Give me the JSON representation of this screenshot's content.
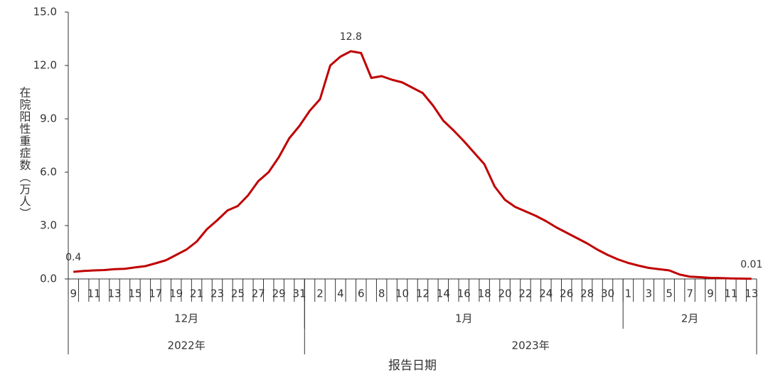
{
  "chart_data": {
    "type": "line",
    "y_label": "在院阳性重症数（万人）",
    "x_label": "报告日期",
    "categories": [
      "9",
      null,
      "11",
      null,
      "13",
      null,
      "15",
      null,
      "17",
      null,
      "19",
      null,
      "21",
      null,
      "23",
      null,
      "25",
      null,
      "27",
      null,
      "29",
      null,
      "31",
      null,
      "2",
      null,
      "4",
      null,
      "6",
      null,
      "8",
      null,
      "10",
      null,
      "12",
      null,
      "14",
      null,
      "16",
      null,
      "18",
      null,
      "20",
      null,
      "22",
      null,
      "24",
      null,
      "26",
      null,
      "28",
      null,
      "30",
      null,
      "1",
      null,
      "3",
      null,
      "5",
      null,
      "7",
      null,
      "9",
      null,
      "11",
      null,
      "13"
    ],
    "months": [
      "12月",
      "1月",
      "2月"
    ],
    "years": [
      "2022年",
      "2023年"
    ],
    "series": [
      {
        "name": "在院阳性重症数",
        "color": "#c00000",
        "values": [
          0.4,
          0.45,
          0.48,
          0.5,
          0.55,
          0.57,
          0.65,
          0.72,
          0.88,
          1.05,
          1.35,
          1.65,
          2.1,
          2.8,
          3.3,
          3.85,
          4.1,
          4.7,
          5.5,
          6.0,
          6.85,
          7.9,
          8.6,
          9.45,
          10.1,
          12.0,
          12.5,
          12.8,
          12.7,
          11.3,
          11.4,
          11.2,
          11.05,
          10.75,
          10.45,
          9.75,
          8.9,
          8.35,
          7.75,
          7.1,
          6.45,
          5.2,
          4.45,
          4.05,
          3.8,
          3.55,
          3.25,
          2.9,
          2.6,
          2.3,
          2.0,
          1.65,
          1.35,
          1.1,
          0.9,
          0.75,
          0.62,
          0.55,
          0.48,
          0.25,
          0.13,
          0.1,
          0.06,
          0.05,
          0.03,
          0.02,
          0.01
        ],
        "value_labels": [
          "0.4",
          null,
          null,
          null,
          null,
          null,
          null,
          null,
          null,
          null,
          null,
          null,
          null,
          null,
          null,
          null,
          null,
          null,
          null,
          null,
          null,
          null,
          null,
          null,
          null,
          null,
          null,
          "12.8",
          null,
          null,
          null,
          null,
          null,
          null,
          null,
          null,
          null,
          null,
          null,
          null,
          null,
          null,
          null,
          null,
          null,
          null,
          null,
          null,
          null,
          null,
          null,
          null,
          null,
          null,
          null,
          null,
          null,
          null,
          null,
          null,
          null,
          null,
          null,
          null,
          null,
          null,
          "0.01"
        ]
      }
    ],
    "ylim": [
      0,
      15
    ],
    "yticks": [
      {
        "value": 0,
        "label": "0.0"
      },
      {
        "value": 3,
        "label": "3.0"
      },
      {
        "value": 6,
        "label": "6.0"
      },
      {
        "value": 9,
        "label": "9.0"
      },
      {
        "value": 12,
        "label": "12.0"
      },
      {
        "value": 15,
        "label": "15.0"
      }
    ],
    "grid": false
  }
}
